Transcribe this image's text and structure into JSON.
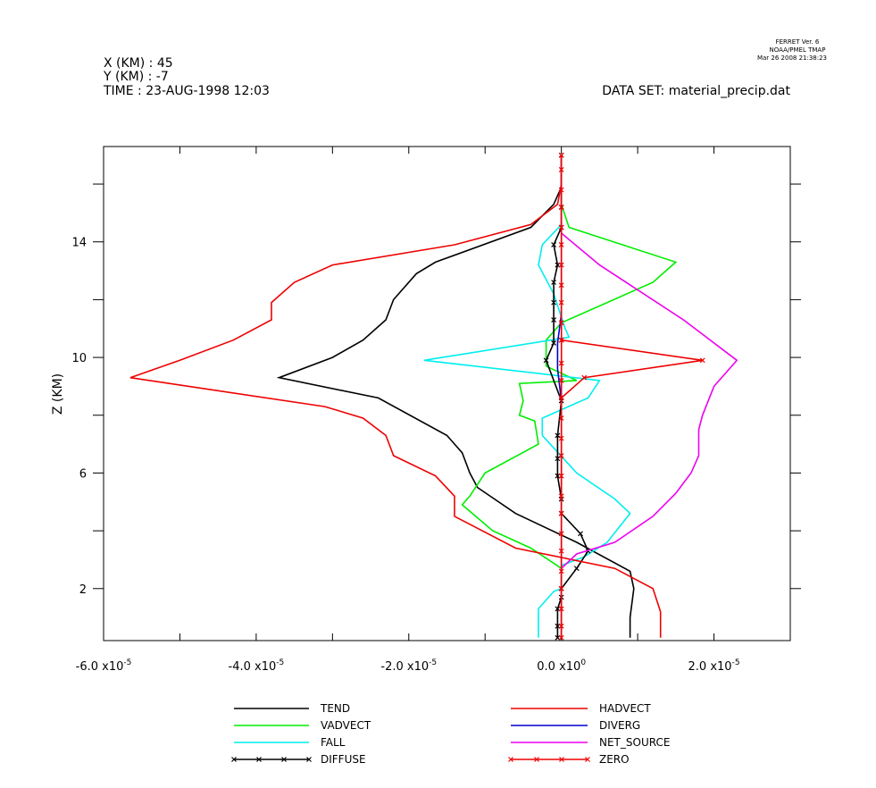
{
  "header": {
    "left_lines": [
      "X (KM) : 45",
      "Y (KM) : -7",
      "TIME : 23-AUG-1998 12:03"
    ],
    "dataset": "DATA SET: material_precip.dat",
    "ferret_lines": [
      "FERRET Ver. 6",
      "NOAA/PMEL TMAP",
      "Mar 26 2008 21:38:23"
    ]
  },
  "chart_data": {
    "type": "line",
    "title": "",
    "xlabel": "",
    "ylabel": "Z (KM)",
    "xlim": [
      -6e-05,
      3e-05
    ],
    "ylim": [
      0.2,
      17.3
    ],
    "x_ticks": [
      {
        "value": -6e-05,
        "mantissa": "-6.0",
        "exp": "-5"
      },
      {
        "value": -4e-05,
        "mantissa": "-4.0",
        "exp": "-5"
      },
      {
        "value": -2e-05,
        "mantissa": "-2.0",
        "exp": "-5"
      },
      {
        "value": 0.0,
        "mantissa": "0.0",
        "exp": "0"
      },
      {
        "value": 2e-05,
        "mantissa": "2.0",
        "exp": "-5"
      }
    ],
    "x_minor_ticks": [
      -5e-05,
      -3e-05,
      -1e-05,
      1e-05,
      3e-05
    ],
    "y_ticks": [
      2,
      6,
      10,
      14
    ],
    "y_minor_ticks": [
      4,
      8,
      12,
      16
    ],
    "grid": false,
    "legend_position": "bottom",
    "series": [
      {
        "name": "TEND",
        "color": "#000000",
        "marker": false,
        "points": [
          [
            9e-06,
            0.3
          ],
          [
            9e-06,
            1.0
          ],
          [
            9.5e-06,
            2.0
          ],
          [
            9e-06,
            2.6
          ],
          [
            2e-06,
            3.6
          ],
          [
            -6e-06,
            4.6
          ],
          [
            -1.1e-05,
            5.5
          ],
          [
            -1.2e-05,
            6.0
          ],
          [
            -1.3e-05,
            6.7
          ],
          [
            -1.5e-05,
            7.3
          ],
          [
            -2.4e-05,
            8.6
          ],
          [
            -3.7e-05,
            9.3
          ],
          [
            -3e-05,
            10.0
          ],
          [
            -2.6e-05,
            10.6
          ],
          [
            -2.3e-05,
            11.3
          ],
          [
            -2.2e-05,
            12.0
          ],
          [
            -1.9e-05,
            12.9
          ],
          [
            -1.65e-05,
            13.3
          ],
          [
            -4e-06,
            14.5
          ],
          [
            -1e-06,
            15.3
          ],
          [
            0.0,
            15.9
          ],
          [
            0.0,
            17.0
          ]
        ]
      },
      {
        "name": "VADVECT",
        "color": "#00ee00",
        "marker": false,
        "points": [
          [
            0.0,
            0.3
          ],
          [
            0.0,
            2.0
          ],
          [
            0.0,
            2.7
          ],
          [
            -4e-06,
            3.4
          ],
          [
            -9e-06,
            4.0
          ],
          [
            -1.3e-05,
            4.9
          ],
          [
            -1.2e-05,
            5.2
          ],
          [
            -1e-05,
            6.0
          ],
          [
            -3e-06,
            7.0
          ],
          [
            -3.5e-06,
            7.8
          ],
          [
            -5.5e-06,
            8.0
          ],
          [
            -5e-06,
            8.5
          ],
          [
            -5.5e-06,
            9.1
          ],
          [
            2e-06,
            9.2
          ],
          [
            -2e-06,
            9.7
          ],
          [
            -2e-06,
            10.6
          ],
          [
            0.0,
            11.2
          ],
          [
            1.2e-05,
            12.6
          ],
          [
            1.5e-05,
            13.3
          ],
          [
            1e-06,
            14.5
          ],
          [
            0.0,
            15.3
          ],
          [
            0.0,
            17.0
          ]
        ]
      },
      {
        "name": "FALL",
        "color": "#00eeee",
        "marker": false,
        "points": [
          [
            -3e-06,
            0.3
          ],
          [
            -3e-06,
            1.3
          ],
          [
            -1e-06,
            1.9
          ],
          [
            0.0,
            2.0
          ],
          [
            0.0,
            2.8
          ],
          [
            3e-06,
            3.1
          ],
          [
            6e-06,
            3.6
          ],
          [
            9e-06,
            4.6
          ],
          [
            7e-06,
            5.1
          ],
          [
            2e-06,
            6.0
          ],
          [
            -2.5e-06,
            7.3
          ],
          [
            -2.5e-06,
            7.9
          ],
          [
            3.5e-06,
            8.6
          ],
          [
            5e-06,
            9.2
          ],
          [
            -1.8e-05,
            9.9
          ],
          [
            1e-06,
            10.7
          ],
          [
            5e-07,
            11.0
          ],
          [
            -1e-06,
            12.2
          ],
          [
            -3e-06,
            13.2
          ],
          [
            -2.5e-06,
            13.9
          ],
          [
            0.0,
            14.6
          ],
          [
            0.0,
            17.0
          ]
        ]
      },
      {
        "name": "DIFFUSE",
        "color": "#000000",
        "marker": true,
        "points": [
          [
            -5e-07,
            0.3
          ],
          [
            -5e-07,
            0.7
          ],
          [
            -5e-07,
            1.3
          ],
          [
            0.0,
            1.7
          ],
          [
            0.0,
            2.0
          ],
          [
            2e-06,
            2.7
          ],
          [
            3.5e-06,
            3.3
          ],
          [
            2.5e-06,
            3.9
          ],
          [
            0.0,
            4.6
          ],
          [
            0.0,
            5.1
          ],
          [
            -5e-07,
            5.9
          ],
          [
            -5e-07,
            6.5
          ],
          [
            -5e-07,
            7.3
          ],
          [
            0.0,
            8.5
          ],
          [
            -2e-06,
            9.9
          ],
          [
            -1e-06,
            10.5
          ],
          [
            -1e-06,
            11.3
          ],
          [
            -1e-06,
            11.9
          ],
          [
            -1e-06,
            12.6
          ],
          [
            -5e-07,
            13.2
          ],
          [
            -1e-06,
            13.9
          ],
          [
            0.0,
            14.5
          ],
          [
            0.0,
            15.2
          ],
          [
            0.0,
            17.0
          ]
        ]
      },
      {
        "name": "HADVECT",
        "color": "#ee0000",
        "marker": false,
        "points": [
          [
            1.3e-05,
            0.3
          ],
          [
            1.3e-05,
            1.2
          ],
          [
            1.2e-05,
            2.0
          ],
          [
            7e-06,
            2.7
          ],
          [
            -6e-06,
            3.4
          ],
          [
            -1.4e-05,
            4.5
          ],
          [
            -1.4e-05,
            5.2
          ],
          [
            -1.65e-05,
            5.9
          ],
          [
            -2.2e-05,
            6.6
          ],
          [
            -2.3e-05,
            7.3
          ],
          [
            -2.6e-05,
            7.9
          ],
          [
            -3.1e-05,
            8.3
          ],
          [
            -5.65e-05,
            9.3
          ],
          [
            -5e-05,
            9.9
          ],
          [
            -4.3e-05,
            10.6
          ],
          [
            -3.8e-05,
            11.3
          ],
          [
            -3.8e-05,
            11.9
          ],
          [
            -3.5e-05,
            12.6
          ],
          [
            -3e-05,
            13.2
          ],
          [
            -1.4e-05,
            13.9
          ],
          [
            -4e-06,
            14.6
          ],
          [
            -5e-07,
            15.3
          ],
          [
            0.0,
            16.0
          ],
          [
            0.0,
            17.0
          ]
        ]
      },
      {
        "name": "DIVERG",
        "color": "#0000cc",
        "marker": false,
        "points": [
          [
            0.0,
            0.3
          ],
          [
            0.0,
            5.0
          ],
          [
            0.0,
            8.5
          ],
          [
            -5e-07,
            9.6
          ],
          [
            -5e-07,
            10.5
          ],
          [
            0.0,
            11.5
          ],
          [
            0.0,
            17.0
          ]
        ]
      },
      {
        "name": "NET_SOURCE",
        "color": "#ee00ee",
        "marker": false,
        "points": [
          [
            0.0,
            0.3
          ],
          [
            0.0,
            2.7
          ],
          [
            2e-06,
            3.2
          ],
          [
            7e-06,
            3.6
          ],
          [
            1.2e-05,
            4.5
          ],
          [
            1.5e-05,
            5.3
          ],
          [
            1.7e-05,
            6.0
          ],
          [
            1.8e-05,
            6.6
          ],
          [
            1.8e-05,
            7.5
          ],
          [
            1.85e-05,
            8.0
          ],
          [
            2e-05,
            9.0
          ],
          [
            2.3e-05,
            9.9
          ],
          [
            1.6e-05,
            11.3
          ],
          [
            5e-06,
            13.2
          ],
          [
            0.0,
            14.3
          ],
          [
            0.0,
            17.0
          ]
        ]
      },
      {
        "name": "ZERO",
        "color": "#ee0000",
        "marker": true,
        "points": [
          [
            0.0,
            0.3
          ],
          [
            0.0,
            0.7
          ],
          [
            0.0,
            1.3
          ],
          [
            0.0,
            2.0
          ],
          [
            0.0,
            2.6
          ],
          [
            0.0,
            3.3
          ],
          [
            0.0,
            3.9
          ],
          [
            0.0,
            4.6
          ],
          [
            0.0,
            5.2
          ],
          [
            0.0,
            5.9
          ],
          [
            0.0,
            6.6
          ],
          [
            0.0,
            7.2
          ],
          [
            0.0,
            7.9
          ],
          [
            0.0,
            8.6
          ],
          [
            0.0,
            9.2
          ],
          [
            0.0,
            9.8
          ],
          [
            0.0,
            10.6
          ],
          [
            0.0,
            11.2
          ],
          [
            0.0,
            11.9
          ],
          [
            0.0,
            12.5
          ],
          [
            0.0,
            13.2
          ],
          [
            0.0,
            13.9
          ],
          [
            0.0,
            14.5
          ],
          [
            0.0,
            15.2
          ],
          [
            0.0,
            15.8
          ],
          [
            0.0,
            16.5
          ],
          [
            0.0,
            17.0
          ]
        ]
      },
      {
        "name": "",
        "color": "#ee0000",
        "marker": true,
        "points": [
          [
            0.0,
            10.6
          ],
          [
            1.85e-05,
            9.9
          ],
          [
            3e-06,
            9.3
          ],
          [
            0.0,
            8.6
          ]
        ]
      }
    ]
  }
}
